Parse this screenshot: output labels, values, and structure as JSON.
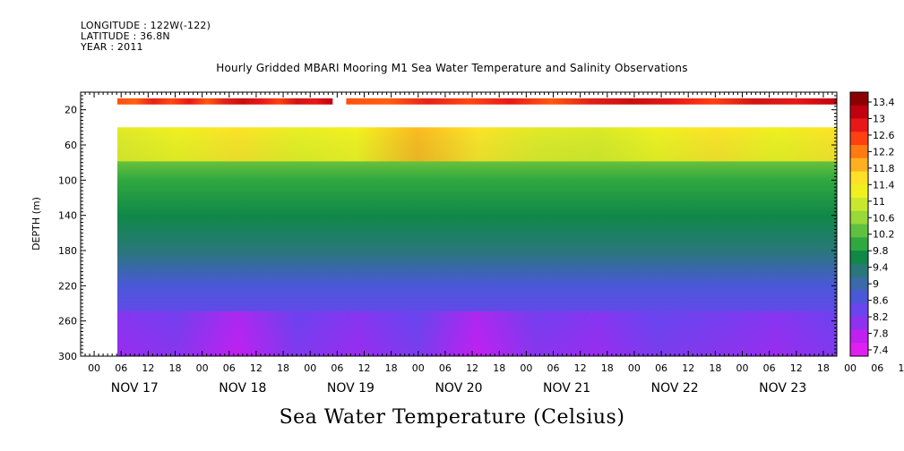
{
  "header": {
    "longitude": "LONGITUDE : 122W(-122)",
    "latitude": "LATITUDE : 36.8N",
    "year": "YEAR : 2011"
  },
  "chart_data": {
    "type": "heatmap",
    "title": "Hourly Gridded MBARI Mooring M1 Sea Water Temperature and Salinity Observations",
    "ylabel": "DEPTH (m)",
    "xlabel": "",
    "colorbar_title": "Sea Water Temperature (Celsius)",
    "y_range": [
      300,
      0
    ],
    "y_ticks": [
      20,
      60,
      100,
      140,
      180,
      220,
      260,
      300
    ],
    "x_range_hours": [
      "NOV 16 21:00",
      "NOV 23 21:00"
    ],
    "hour_tick_labels": [
      "00",
      "06",
      "12",
      "18",
      "00",
      "06",
      "12",
      "18",
      "00",
      "06",
      "12",
      "18",
      "00",
      "06",
      "12",
      "18",
      "00",
      "06",
      "12",
      "18",
      "00",
      "06",
      "12",
      "18",
      "00",
      "06",
      "12",
      "18",
      "00",
      "06",
      "12",
      "18"
    ],
    "day_labels": [
      "NOV 17",
      "NOV 18",
      "NOV 19",
      "NOV 20",
      "NOV 21",
      "NOV 22",
      "NOV 23"
    ],
    "colorbar_levels": [
      "13.4",
      "13",
      "12.6",
      "12.2",
      "11.8",
      "11.4",
      "11",
      "10.6",
      "10.2",
      "9.8",
      "9.4",
      "9",
      "8.6",
      "8.2",
      "7.8",
      "7.4"
    ],
    "colorbar_colors": [
      "#8b0000",
      "#c00010",
      "#e81818",
      "#ff4010",
      "#ff7a10",
      "#ffb020",
      "#ffe028",
      "#f0f020",
      "#c8e830",
      "#98d838",
      "#60c040",
      "#30a840",
      "#108848",
      "#287878",
      "#3a6aa8",
      "#4a58d8",
      "#6a44ee",
      "#9030f0",
      "#c020f0",
      "#e020f0"
    ],
    "depth_profile": {
      "depths_m": [
        10,
        40,
        60,
        100,
        140,
        180,
        220,
        260,
        300
      ],
      "temperature_c": [
        12.8,
        11.2,
        10.6,
        10.0,
        9.6,
        9.1,
        8.6,
        8.1,
        7.7
      ]
    },
    "notes": "Surface band (~10 m) near 12.6-13.2 C; no data between ~20 and ~40 m; gap in surface band on NOV 19 ~06:00."
  }
}
